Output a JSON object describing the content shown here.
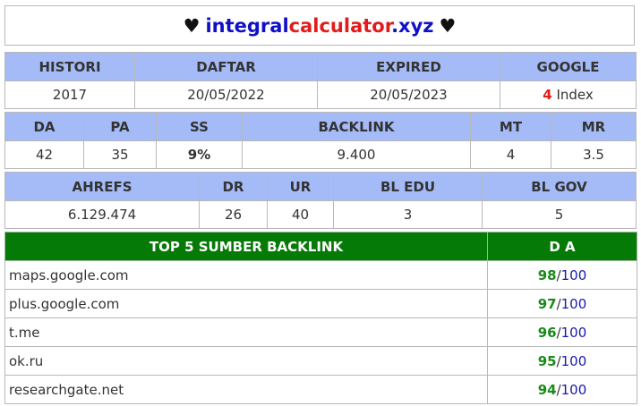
{
  "title": {
    "heart": "♥",
    "part1": "integral",
    "part2": "calculator",
    "part3": ".xyz"
  },
  "table1": {
    "headers": [
      "HISTORI",
      "DAFTAR",
      "EXPIRED",
      "GOOGLE"
    ],
    "values": {
      "histori": "2017",
      "daftar": "20/05/2022",
      "expired": "20/05/2023",
      "google_count": "4",
      "google_suffix": " Index"
    }
  },
  "table2": {
    "headers": [
      "DA",
      "PA",
      "SS",
      "BACKLINK",
      "MT",
      "MR"
    ],
    "values": [
      "42",
      "35",
      "9%",
      "9.400",
      "4",
      "3.5"
    ]
  },
  "table3": {
    "headers": [
      "AHREFS",
      "DR",
      "UR",
      "BL EDU",
      "BL GOV"
    ],
    "values": [
      "6.129.474",
      "26",
      "40",
      "3",
      "5"
    ]
  },
  "top_backlinks": {
    "header_source": "TOP 5 SUMBER BACKLINK",
    "header_da": "D A",
    "separator": "/",
    "max": "100",
    "rows": [
      {
        "site": "maps.google.com",
        "da": "98"
      },
      {
        "site": "plus.google.com",
        "da": "97"
      },
      {
        "site": "t.me",
        "da": "96"
      },
      {
        "site": "ok.ru",
        "da": "95"
      },
      {
        "site": "researchgate.net",
        "da": "94"
      }
    ]
  },
  "colors": {
    "header_blue": "#a4bbf7",
    "header_green": "#067a06",
    "accent_red": "#e21b1b",
    "accent_green": "#1a8a1a",
    "accent_blue": "#1010c8"
  }
}
